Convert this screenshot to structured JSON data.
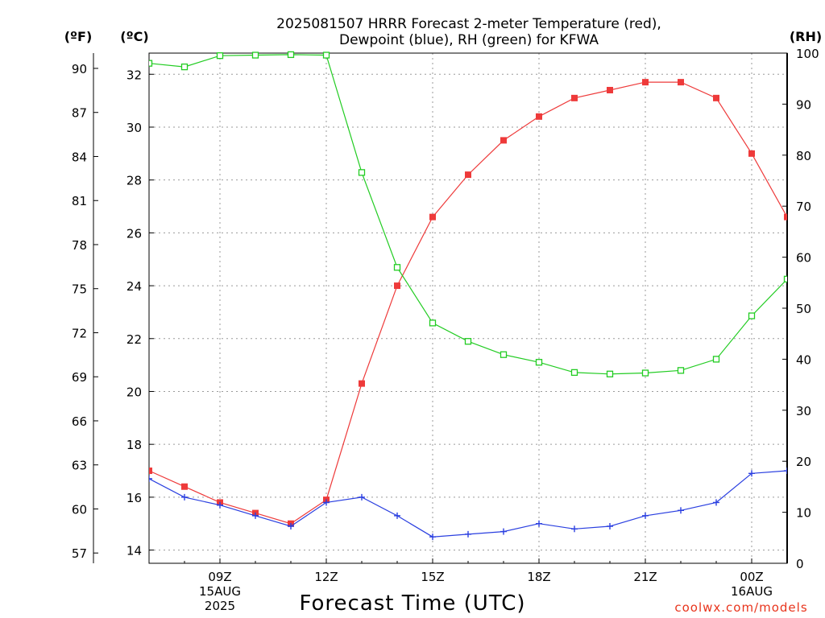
{
  "title_lines": [
    "2025081507 HRRR Forecast 2-meter Temperature (red),",
    "Dewpoint (blue), RH (green) for KFWA"
  ],
  "unit_labels": {
    "fahrenheit": "(ºF)",
    "celsius": "(ºC)",
    "rh": "(RH)"
  },
  "credit": "coolwx.com/models",
  "chart_data": {
    "type": "line",
    "title": "2025081507 HRRR Forecast 2-meter Temperature (red), Dewpoint (blue), RH (green) for KFWA",
    "xlabel": "Forecast Time (UTC)",
    "x_hours": [
      7,
      8,
      9,
      10,
      11,
      12,
      13,
      14,
      15,
      16,
      17,
      18,
      19,
      20,
      21,
      22,
      23,
      24,
      25
    ],
    "xlim": [
      7,
      25
    ],
    "x_ticks": [
      {
        "hour": 9,
        "lines": [
          "09Z",
          "15AUG",
          "2025"
        ]
      },
      {
        "hour": 12,
        "lines": [
          "12Z"
        ]
      },
      {
        "hour": 15,
        "lines": [
          "15Z"
        ]
      },
      {
        "hour": 18,
        "lines": [
          "18Z"
        ]
      },
      {
        "hour": 21,
        "lines": [
          "21Z"
        ]
      },
      {
        "hour": 24,
        "lines": [
          "00Z",
          "16AUG"
        ]
      }
    ],
    "y_celsius": {
      "range": [
        13.5,
        32.8
      ],
      "ticks": [
        14,
        16,
        18,
        20,
        22,
        24,
        26,
        28,
        30,
        32
      ]
    },
    "y_fahrenheit_ticks": [
      57,
      60,
      63,
      66,
      69,
      72,
      75,
      78,
      81,
      84,
      87,
      90
    ],
    "y_rh": {
      "range": [
        0,
        100
      ],
      "ticks": [
        0,
        10,
        20,
        30,
        40,
        50,
        60,
        70,
        80,
        90,
        100
      ]
    },
    "grid": true,
    "series": [
      {
        "name": "Temperature",
        "axis": "celsius",
        "color": "#ee3a3a",
        "marker": "filled-square",
        "values": [
          17.0,
          16.4,
          15.8,
          15.4,
          15.0,
          15.9,
          20.3,
          24.0,
          26.6,
          28.2,
          29.5,
          30.4,
          31.1,
          31.4,
          31.7,
          31.7,
          31.1,
          29.0,
          26.6
        ]
      },
      {
        "name": "Dewpoint",
        "axis": "celsius",
        "color": "#2a3fe0",
        "marker": "plus",
        "values": [
          16.7,
          16.0,
          15.7,
          15.3,
          14.9,
          15.8,
          16.0,
          15.3,
          14.5,
          14.6,
          14.7,
          15.0,
          14.8,
          14.9,
          15.3,
          15.5,
          15.8,
          16.9,
          17.0
        ]
      },
      {
        "name": "RH",
        "axis": "rh",
        "color": "#22cc22",
        "marker": "open-square",
        "values": [
          98,
          97.3,
          99.5,
          99.6,
          99.7,
          99.6,
          76.6,
          58.0,
          47.1,
          43.5,
          40.9,
          39.4,
          37.4,
          37.1,
          37.3,
          37.8,
          40.0,
          48.5,
          55.7
        ]
      }
    ]
  }
}
